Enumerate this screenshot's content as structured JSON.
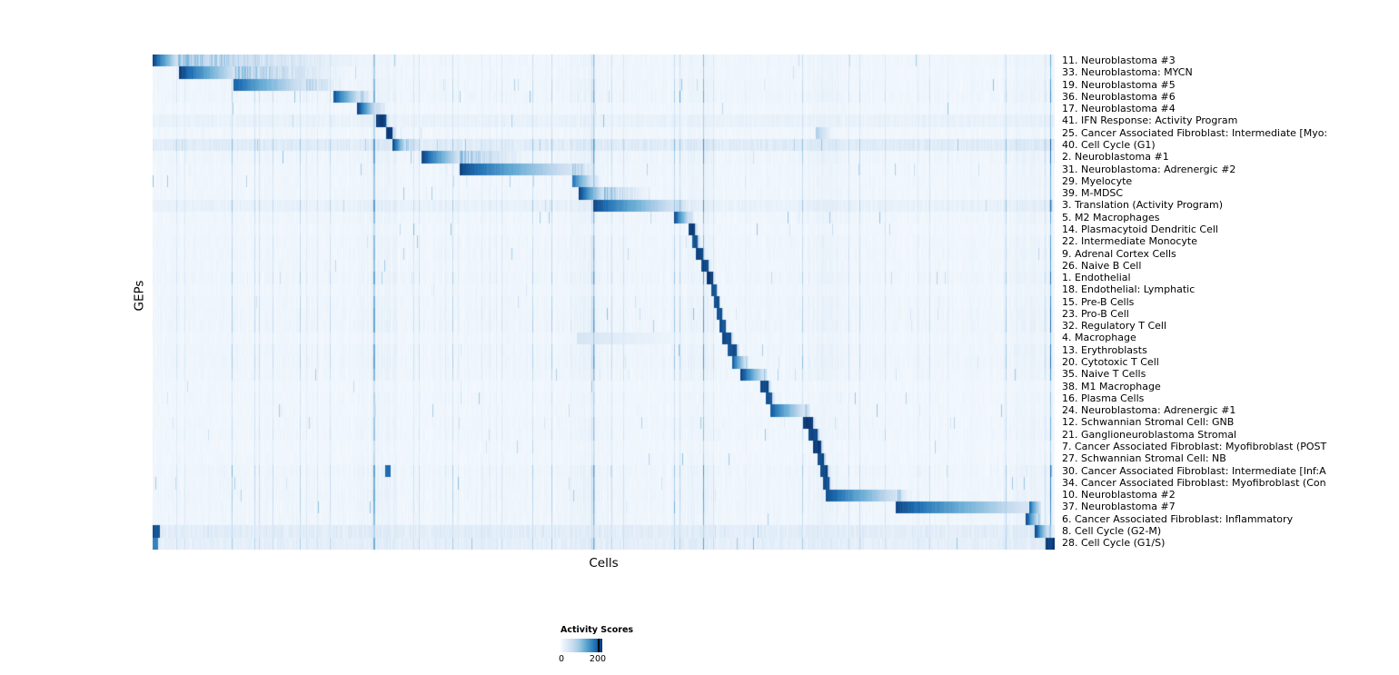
{
  "chart_data": {
    "type": "heatmap",
    "title": "",
    "xlabel": "Cells",
    "ylabel": "GEPs",
    "legend": {
      "title": "Activity Scores",
      "ticks": [
        0,
        200
      ],
      "tick_labels": [
        "0",
        "200"
      ],
      "tick_positions": [
        0,
        0.89
      ]
    },
    "value_range": [
      0,
      225
    ],
    "color_scale": [
      "#f7fbff",
      "#c6dbef",
      "#6baed6",
      "#2171b5",
      "#08306b"
    ],
    "layout": {
      "grid": false,
      "legend_position": "bottom-center",
      "row_count": 41
    },
    "rows": [
      {
        "label": "11. Neuroblastoma #3",
        "start": 0.0,
        "end": 0.028,
        "tail": 0.28,
        "peak": 1.0
      },
      {
        "label": "33. Neuroblastoma: MYCN",
        "start": 0.029,
        "end": 0.092,
        "tail": 0.24,
        "peak": 1.0
      },
      {
        "label": "19. Neuroblastoma #5",
        "start": 0.09,
        "end": 0.17,
        "tail": 0.22,
        "peak": 0.85
      },
      {
        "label": "36. Neuroblastoma #6",
        "start": 0.2,
        "end": 0.23,
        "tail": 0.246,
        "peak": 0.95
      },
      {
        "label": "17. Neuroblastoma #4",
        "start": 0.227,
        "end": 0.248,
        "tail": 0.262,
        "peak": 1.0
      },
      {
        "label": "41. IFN Response: Activity Program",
        "start": 0.248,
        "end": 0.259,
        "tail": 0.264,
        "peak": 1.0,
        "wash": 0.035
      },
      {
        "label": "25. Cancer Associated Fibroblast: Intermediate [Myo:",
        "start": 0.259,
        "end": 0.266,
        "tail": 0.272,
        "peak": 1.0,
        "extra": [
          {
            "start": 0.735,
            "end": 0.752,
            "peak": 0.35
          }
        ]
      },
      {
        "label": "40. Cell Cycle (G1)",
        "start": 0.266,
        "end": 0.281,
        "tail": 0.3,
        "peak": 1.0,
        "wash": 0.07
      },
      {
        "label": "2. Neuroblastoma #1",
        "start": 0.298,
        "end": 0.34,
        "tail": 0.43,
        "peak": 1.0
      },
      {
        "label": "31. Neuroblastoma: Adrenergic #2",
        "start": 0.34,
        "end": 0.465,
        "tail": 0.5,
        "peak": 0.95
      },
      {
        "label": "29. Myelocyte",
        "start": 0.465,
        "end": 0.489,
        "tail": 0.5,
        "peak": 0.8
      },
      {
        "label": "39. M-MDSC",
        "start": 0.472,
        "end": 0.5,
        "tail": 0.56,
        "peak": 1.0
      },
      {
        "label": "3. Translation (Activity Program)",
        "start": 0.488,
        "end": 0.58,
        "tail": 0.6,
        "peak": 0.95,
        "wash": 0.03
      },
      {
        "label": "5. M2 Macrophages",
        "start": 0.578,
        "end": 0.595,
        "tail": 0.602,
        "peak": 1.0
      },
      {
        "label": "14. Plasmacytoid Dendritic Cell",
        "start": 0.594,
        "end": 0.601,
        "tail": 0.606,
        "peak": 1.0
      },
      {
        "label": "22. Intermediate Monocyte",
        "start": 0.598,
        "end": 0.604,
        "tail": 0.61,
        "peak": 0.9
      },
      {
        "label": "9. Adrenal Cortex Cells",
        "start": 0.602,
        "end": 0.61,
        "tail": 0.614,
        "peak": 1.0
      },
      {
        "label": "26. Naive B Cell",
        "start": 0.608,
        "end": 0.616,
        "tail": 0.62,
        "peak": 0.95
      },
      {
        "label": "1. Endothelial",
        "start": 0.614,
        "end": 0.621,
        "tail": 0.625,
        "peak": 1.0
      },
      {
        "label": "18. Endothelial: Lymphatic",
        "start": 0.619,
        "end": 0.625,
        "tail": 0.628,
        "peak": 0.9
      },
      {
        "label": "15. Pre-B Cells",
        "start": 0.622,
        "end": 0.628,
        "tail": 0.631,
        "peak": 0.95
      },
      {
        "label": "23. Pro-B Cell",
        "start": 0.625,
        "end": 0.631,
        "tail": 0.634,
        "peak": 0.9
      },
      {
        "label": "32. Regulatory T Cell",
        "start": 0.628,
        "end": 0.635,
        "tail": 0.638,
        "peak": 0.9
      },
      {
        "label": "4. Macrophage",
        "start": 0.631,
        "end": 0.641,
        "tail": 0.646,
        "peak": 0.95,
        "extra": [
          {
            "start": 0.47,
            "end": 0.6,
            "peak": 0.18
          }
        ]
      },
      {
        "label": "13. Erythroblasts",
        "start": 0.637,
        "end": 0.648,
        "tail": 0.652,
        "peak": 0.9
      },
      {
        "label": "20. Cytotoxic T Cell",
        "start": 0.643,
        "end": 0.658,
        "tail": 0.662,
        "peak": 0.9
      },
      {
        "label": "35. Naive T Cells",
        "start": 0.652,
        "end": 0.678,
        "tail": 0.683,
        "peak": 1.0
      },
      {
        "label": "38. M1 Macrophage",
        "start": 0.674,
        "end": 0.683,
        "tail": 0.687,
        "peak": 0.95
      },
      {
        "label": "16. Plasma Cells",
        "start": 0.68,
        "end": 0.687,
        "tail": 0.691,
        "peak": 0.9
      },
      {
        "label": "24. Neuroblastoma: Adrenergic #1",
        "start": 0.685,
        "end": 0.723,
        "tail": 0.732,
        "peak": 0.9
      },
      {
        "label": "12. Schwannian Stromal Cell: GNB",
        "start": 0.721,
        "end": 0.732,
        "tail": 0.736,
        "peak": 1.0
      },
      {
        "label": "21. Ganglioneuroblastoma Stromal",
        "start": 0.727,
        "end": 0.737,
        "tail": 0.741,
        "peak": 0.95
      },
      {
        "label": "7. Cancer Associated Fibroblast: Myofibroblast (POST",
        "start": 0.732,
        "end": 0.741,
        "tail": 0.745,
        "peak": 1.0
      },
      {
        "label": "27. Schwannian Stromal Cell: NB",
        "start": 0.737,
        "end": 0.744,
        "tail": 0.748,
        "peak": 0.95
      },
      {
        "label": "30. Cancer Associated Fibroblast: Intermediate [Inf:A",
        "start": 0.74,
        "end": 0.748,
        "tail": 0.752,
        "peak": 0.95,
        "extra": [
          {
            "start": 0.258,
            "end": 0.264,
            "peak": 0.8
          }
        ]
      },
      {
        "label": "34. Cancer Associated Fibroblast: Myofibroblast (Con",
        "start": 0.743,
        "end": 0.75,
        "tail": 0.754,
        "peak": 0.9
      },
      {
        "label": "10. Neuroblastoma #2",
        "start": 0.746,
        "end": 0.826,
        "tail": 0.84,
        "peak": 0.95
      },
      {
        "label": "37. Neuroblastoma #7",
        "start": 0.824,
        "end": 0.968,
        "tail": 0.974,
        "peak": 0.95,
        "extra": [
          {
            "start": 0.972,
            "end": 0.985,
            "peak": 0.85
          }
        ]
      },
      {
        "label": "6. Cancer Associated Fibroblast: Inflammatory",
        "start": 0.968,
        "end": 0.982,
        "tail": 0.986,
        "peak": 1.0
      },
      {
        "label": "8. Cell Cycle (G2-M)",
        "start": 0.978,
        "end": 0.993,
        "tail": 1.0,
        "peak": 1.0,
        "wash": 0.075,
        "extra": [
          {
            "start": 0.0,
            "end": 0.008,
            "peak": 0.9
          }
        ]
      },
      {
        "label": "28. Cell Cycle (G1/S)",
        "start": 0.99,
        "end": 1.0,
        "tail": 1.0,
        "peak": 1.0,
        "wash": 0.05,
        "extra": [
          {
            "start": 0.0,
            "end": 0.006,
            "peak": 0.7
          }
        ]
      }
    ],
    "noise_bands": [
      [
        0.23,
        0.27
      ],
      [
        0.46,
        0.51
      ],
      [
        0.585,
        0.62
      ],
      [
        0.725,
        0.76
      ],
      [
        0.95,
        1.0
      ]
    ]
  }
}
